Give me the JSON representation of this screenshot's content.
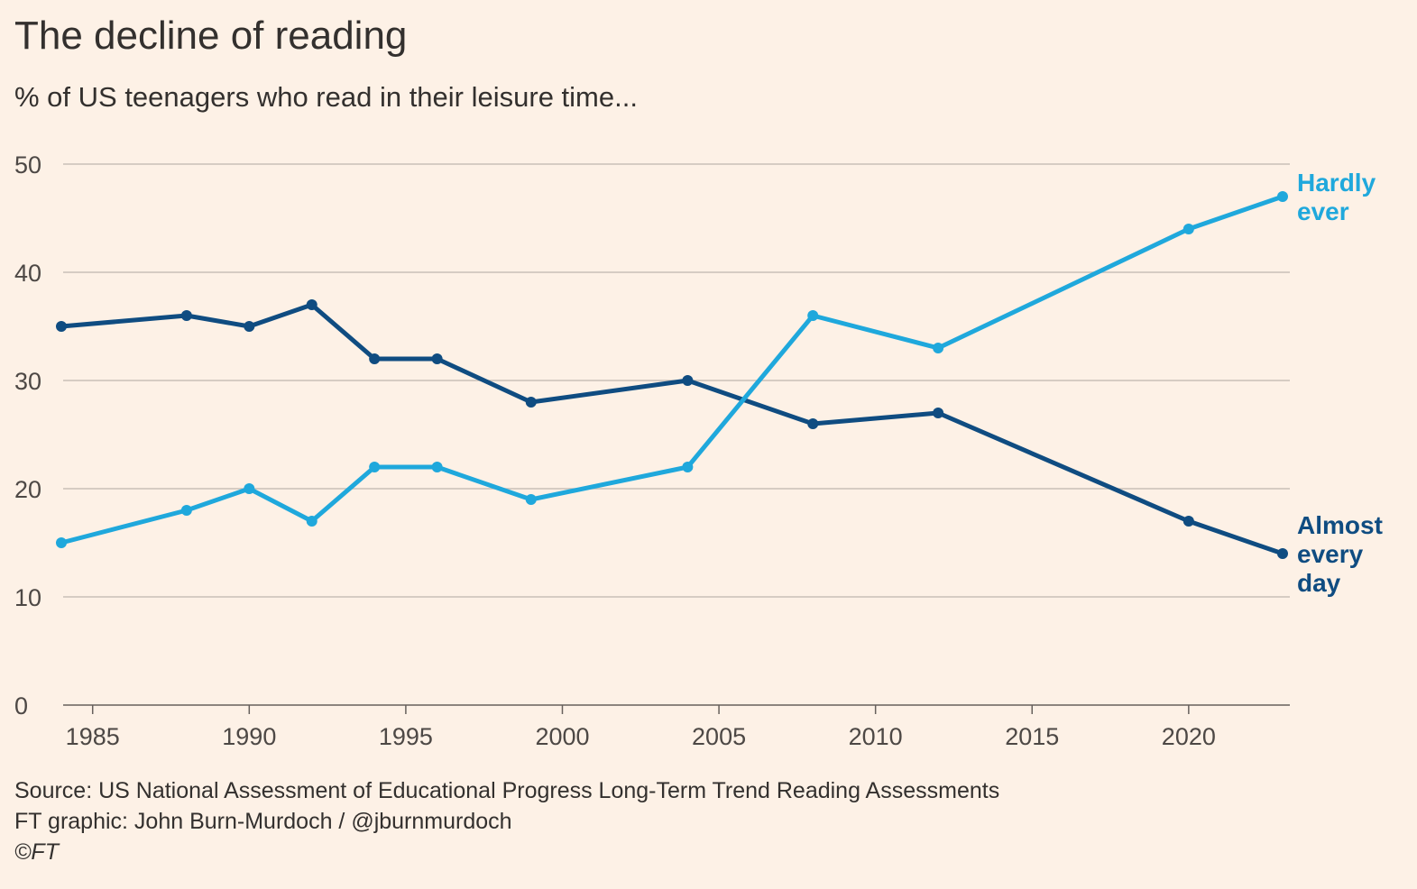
{
  "header": {
    "title": "The decline of reading",
    "subtitle": "% of US teenagers who read in their leisure time..."
  },
  "footer": {
    "source": "Source: US National Assessment of Educational Progress Long-Term Trend Reading Assessments",
    "credit": "FT graphic: John Burn-Murdoch / @jburnmurdoch",
    "copyright": "©FT"
  },
  "chart_data": {
    "type": "line",
    "title": "The decline of reading",
    "subtitle": "% of US teenagers who read in their leisure time...",
    "xlabel": "",
    "ylabel": "",
    "xlim": [
      1984,
      2023
    ],
    "ylim": [
      0,
      50
    ],
    "x_ticks": [
      1985,
      1990,
      1995,
      2000,
      2005,
      2010,
      2015,
      2020
    ],
    "y_ticks": [
      0,
      10,
      20,
      30,
      40,
      50
    ],
    "grid": "horizontal",
    "legend": "direct labels at line ends (right)",
    "series": [
      {
        "name": "Almost every day",
        "label_lines": [
          "Almost",
          "every",
          "day"
        ],
        "color": "#0f4c81",
        "points": [
          [
            1984,
            35
          ],
          [
            1988,
            36
          ],
          [
            1990,
            35
          ],
          [
            1992,
            37
          ],
          [
            1994,
            32
          ],
          [
            1996,
            32
          ],
          [
            1999,
            28
          ],
          [
            2004,
            30
          ],
          [
            2008,
            26
          ],
          [
            2012,
            27
          ],
          [
            2020,
            17
          ],
          [
            2023,
            14
          ]
        ]
      },
      {
        "name": "Hardly ever",
        "label_lines": [
          "Hardly",
          "ever"
        ],
        "color": "#1fa8dc",
        "points": [
          [
            1984,
            15
          ],
          [
            1988,
            18
          ],
          [
            1990,
            20
          ],
          [
            1992,
            17
          ],
          [
            1994,
            22
          ],
          [
            1996,
            22
          ],
          [
            1999,
            19
          ],
          [
            2004,
            22
          ],
          [
            2008,
            36
          ],
          [
            2012,
            33
          ],
          [
            2020,
            44
          ],
          [
            2023,
            47
          ]
        ]
      }
    ]
  }
}
